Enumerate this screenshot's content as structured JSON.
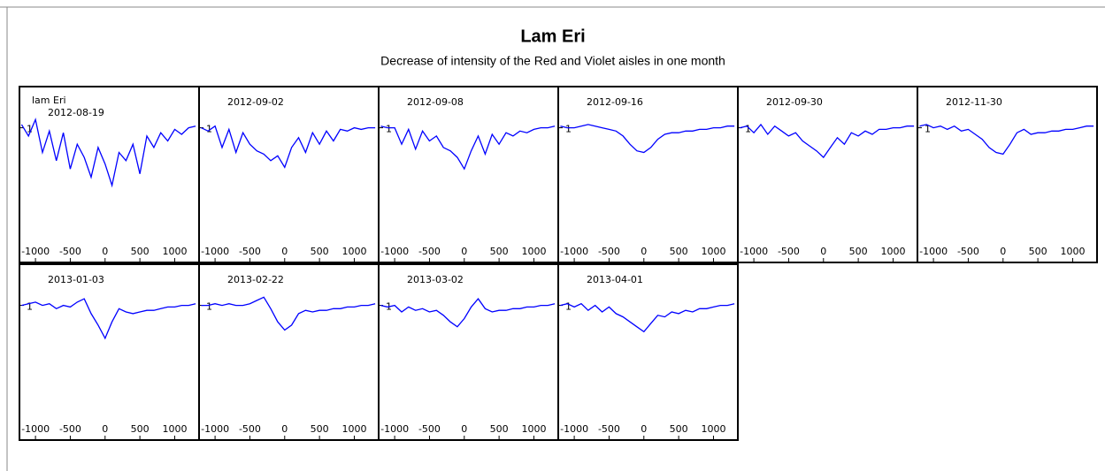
{
  "header": {
    "title": "Lam Eri",
    "subtitle": "Decrease of intensity of the Red and Violet aisles in one month"
  },
  "chart_data": [
    {
      "type": "line",
      "title": "2012-08-19",
      "annotation": "lam Eri",
      "xlim": [
        -1230,
        1350
      ],
      "ylim": [
        0.3,
        1.25
      ],
      "xticks": [
        -1000,
        -500,
        0,
        500,
        1000
      ],
      "yticks": [
        1
      ],
      "x": [
        -1200,
        -1100,
        -1000,
        -900,
        -800,
        -700,
        -600,
        -500,
        -400,
        -300,
        -200,
        -100,
        0,
        100,
        200,
        300,
        400,
        500,
        600,
        700,
        800,
        900,
        1000,
        1100,
        1200,
        1300
      ],
      "series": [
        {
          "name": null,
          "color": "#0000ff",
          "values": [
            1.02,
            0.95,
            1.05,
            0.85,
            0.98,
            0.8,
            0.97,
            0.75,
            0.9,
            0.82,
            0.7,
            0.88,
            0.78,
            0.65,
            0.85,
            0.8,
            0.9,
            0.72,
            0.95,
            0.88,
            0.97,
            0.92,
            0.99,
            0.96,
            1.0,
            1.01
          ]
        }
      ]
    },
    {
      "type": "line",
      "title": "2012-09-02",
      "xlim": [
        -1230,
        1350
      ],
      "ylim": [
        0.3,
        1.25
      ],
      "xticks": [
        -1000,
        -500,
        0,
        500,
        1000
      ],
      "yticks": [
        1
      ],
      "x": [
        -1200,
        -1100,
        -1000,
        -900,
        -800,
        -700,
        -600,
        -500,
        -400,
        -300,
        -200,
        -100,
        0,
        100,
        200,
        300,
        400,
        500,
        600,
        700,
        800,
        900,
        1000,
        1100,
        1200,
        1300
      ],
      "series": [
        {
          "name": null,
          "color": "#0000ff",
          "values": [
            1.0,
            0.98,
            1.01,
            0.88,
            0.99,
            0.85,
            0.97,
            0.9,
            0.86,
            0.84,
            0.8,
            0.83,
            0.76,
            0.88,
            0.94,
            0.85,
            0.97,
            0.9,
            0.98,
            0.92,
            0.99,
            0.98,
            1.0,
            0.99,
            1.0,
            1.0
          ]
        }
      ]
    },
    {
      "type": "line",
      "title": "2012-09-08",
      "xlim": [
        -1230,
        1350
      ],
      "ylim": [
        0.3,
        1.25
      ],
      "xticks": [
        -1000,
        -500,
        0,
        500,
        1000
      ],
      "yticks": [
        1
      ],
      "x": [
        -1200,
        -1100,
        -1000,
        -900,
        -800,
        -700,
        -600,
        -500,
        -400,
        -300,
        -200,
        -100,
        0,
        100,
        200,
        300,
        400,
        500,
        600,
        700,
        800,
        900,
        1000,
        1100,
        1200,
        1300
      ],
      "series": [
        {
          "name": null,
          "color": "#0000ff",
          "values": [
            1.01,
            1.0,
            1.0,
            0.9,
            0.99,
            0.87,
            0.98,
            0.92,
            0.95,
            0.88,
            0.86,
            0.82,
            0.75,
            0.86,
            0.95,
            0.84,
            0.96,
            0.9,
            0.97,
            0.95,
            0.98,
            0.97,
            0.99,
            1.0,
            1.0,
            1.01
          ]
        }
      ]
    },
    {
      "type": "line",
      "title": "2012-09-16",
      "xlim": [
        -1230,
        1350
      ],
      "ylim": [
        0.3,
        1.25
      ],
      "xticks": [
        -1000,
        -500,
        0,
        500,
        1000
      ],
      "yticks": [
        1
      ],
      "x": [
        -1200,
        -1100,
        -1000,
        -900,
        -800,
        -700,
        -600,
        -500,
        -400,
        -300,
        -200,
        -100,
        0,
        100,
        200,
        300,
        400,
        500,
        600,
        700,
        800,
        900,
        1000,
        1100,
        1200,
        1300
      ],
      "series": [
        {
          "name": null,
          "color": "#0000ff",
          "values": [
            1.01,
            1.0,
            1.0,
            1.01,
            1.02,
            1.01,
            1.0,
            0.99,
            0.98,
            0.95,
            0.9,
            0.86,
            0.85,
            0.88,
            0.93,
            0.96,
            0.97,
            0.97,
            0.98,
            0.98,
            0.99,
            0.99,
            1.0,
            1.0,
            1.01,
            1.01
          ]
        }
      ]
    },
    {
      "type": "line",
      "title": "2012-09-30",
      "xlim": [
        -1230,
        1350
      ],
      "ylim": [
        0.3,
        1.25
      ],
      "xticks": [
        -1000,
        -500,
        0,
        500,
        1000
      ],
      "yticks": [
        1
      ],
      "x": [
        -1200,
        -1100,
        -1000,
        -900,
        -800,
        -700,
        -600,
        -500,
        -400,
        -300,
        -200,
        -100,
        0,
        100,
        200,
        300,
        400,
        500,
        600,
        700,
        800,
        900,
        1000,
        1100,
        1200,
        1300
      ],
      "series": [
        {
          "name": null,
          "color": "#0000ff",
          "values": [
            1.0,
            1.01,
            0.97,
            1.02,
            0.96,
            1.01,
            0.98,
            0.95,
            0.97,
            0.92,
            0.89,
            0.86,
            0.82,
            0.88,
            0.94,
            0.9,
            0.97,
            0.95,
            0.98,
            0.96,
            0.99,
            0.99,
            1.0,
            1.0,
            1.01,
            1.01
          ]
        }
      ]
    },
    {
      "type": "line",
      "title": "2012-11-30",
      "xlim": [
        -1230,
        1350
      ],
      "ylim": [
        0.3,
        1.25
      ],
      "xticks": [
        -1000,
        -500,
        0,
        500,
        1000
      ],
      "yticks": [
        1
      ],
      "x": [
        -1200,
        -1100,
        -1000,
        -900,
        -800,
        -700,
        -600,
        -500,
        -400,
        -300,
        -200,
        -100,
        0,
        100,
        200,
        300,
        400,
        500,
        600,
        700,
        800,
        900,
        1000,
        1100,
        1200,
        1300
      ],
      "series": [
        {
          "name": null,
          "color": "#0000ff",
          "values": [
            1.01,
            1.02,
            1.0,
            1.01,
            0.99,
            1.01,
            0.98,
            0.99,
            0.96,
            0.93,
            0.88,
            0.85,
            0.84,
            0.9,
            0.97,
            0.99,
            0.96,
            0.97,
            0.97,
            0.98,
            0.98,
            0.99,
            0.99,
            1.0,
            1.01,
            1.01
          ]
        }
      ]
    },
    {
      "type": "line",
      "title": "2013-01-03",
      "xlim": [
        -1230,
        1350
      ],
      "ylim": [
        0.3,
        1.25
      ],
      "xticks": [
        -1000,
        -500,
        0,
        500,
        1000
      ],
      "yticks": [
        1
      ],
      "x": [
        -1200,
        -1100,
        -1000,
        -900,
        -800,
        -700,
        -600,
        -500,
        -400,
        -300,
        -200,
        -100,
        0,
        100,
        200,
        300,
        400,
        500,
        600,
        700,
        800,
        900,
        1000,
        1100,
        1200,
        1300
      ],
      "series": [
        {
          "name": null,
          "color": "#0000ff",
          "values": [
            1.0,
            1.01,
            1.02,
            1.0,
            1.01,
            0.98,
            1.0,
            0.99,
            1.02,
            1.04,
            0.95,
            0.88,
            0.8,
            0.9,
            0.98,
            0.96,
            0.95,
            0.96,
            0.97,
            0.97,
            0.98,
            0.99,
            0.99,
            1.0,
            1.0,
            1.01
          ]
        }
      ]
    },
    {
      "type": "line",
      "title": "2013-02-22",
      "xlim": [
        -1230,
        1350
      ],
      "ylim": [
        0.3,
        1.25
      ],
      "xticks": [
        -1000,
        -500,
        0,
        500,
        1000
      ],
      "yticks": [
        1
      ],
      "x": [
        -1200,
        -1100,
        -1000,
        -900,
        -800,
        -700,
        -600,
        -500,
        -400,
        -300,
        -200,
        -100,
        0,
        100,
        200,
        300,
        400,
        500,
        600,
        700,
        800,
        900,
        1000,
        1100,
        1200,
        1300
      ],
      "series": [
        {
          "name": null,
          "color": "#0000ff",
          "values": [
            1.0,
            1.0,
            1.01,
            1.0,
            1.01,
            1.0,
            1.0,
            1.01,
            1.03,
            1.05,
            0.98,
            0.9,
            0.85,
            0.88,
            0.95,
            0.97,
            0.96,
            0.97,
            0.97,
            0.98,
            0.98,
            0.99,
            0.99,
            1.0,
            1.0,
            1.01
          ]
        }
      ]
    },
    {
      "type": "line",
      "title": "2013-03-02",
      "xlim": [
        -1230,
        1350
      ],
      "ylim": [
        0.3,
        1.25
      ],
      "xticks": [
        -1000,
        -500,
        0,
        500,
        1000
      ],
      "yticks": [
        1
      ],
      "x": [
        -1200,
        -1100,
        -1000,
        -900,
        -800,
        -700,
        -600,
        -500,
        -400,
        -300,
        -200,
        -100,
        0,
        100,
        200,
        300,
        400,
        500,
        600,
        700,
        800,
        900,
        1000,
        1100,
        1200,
        1300
      ],
      "series": [
        {
          "name": null,
          "color": "#0000ff",
          "values": [
            1.0,
            0.99,
            1.0,
            0.96,
            0.99,
            0.97,
            0.98,
            0.96,
            0.97,
            0.94,
            0.9,
            0.87,
            0.92,
            0.99,
            1.04,
            0.98,
            0.96,
            0.97,
            0.97,
            0.98,
            0.98,
            0.99,
            0.99,
            1.0,
            1.0,
            1.01
          ]
        }
      ]
    },
    {
      "type": "line",
      "title": "2013-04-01",
      "xlim": [
        -1230,
        1350
      ],
      "ylim": [
        0.3,
        1.25
      ],
      "xticks": [
        -1000,
        -500,
        0,
        500,
        1000
      ],
      "yticks": [
        1
      ],
      "x": [
        -1200,
        -1100,
        -1000,
        -900,
        -800,
        -700,
        -600,
        -500,
        -400,
        -300,
        -200,
        -100,
        0,
        100,
        200,
        300,
        400,
        500,
        600,
        700,
        800,
        900,
        1000,
        1100,
        1200,
        1300
      ],
      "series": [
        {
          "name": null,
          "color": "#0000ff",
          "values": [
            1.0,
            1.01,
            0.99,
            1.01,
            0.97,
            1.0,
            0.96,
            0.99,
            0.95,
            0.93,
            0.9,
            0.87,
            0.84,
            0.89,
            0.94,
            0.93,
            0.96,
            0.95,
            0.97,
            0.96,
            0.98,
            0.98,
            0.99,
            1.0,
            1.0,
            1.01
          ]
        }
      ]
    }
  ]
}
